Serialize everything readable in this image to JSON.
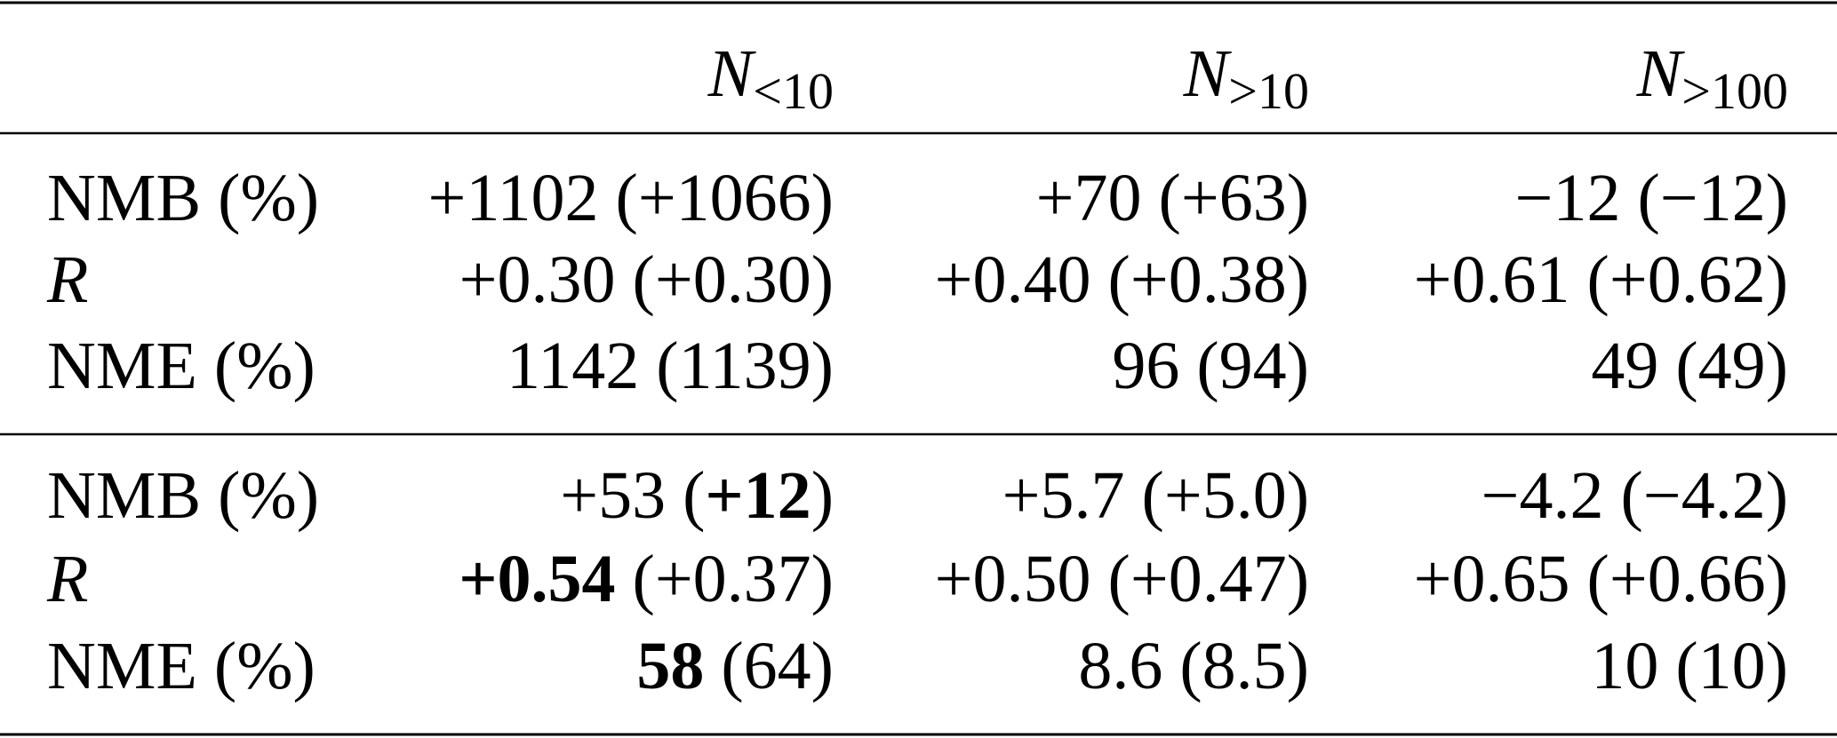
{
  "table": {
    "header": [
      {
        "symbol": "N",
        "subscript": "<10"
      },
      {
        "symbol": "N",
        "subscript": ">10"
      },
      {
        "symbol": "N",
        "subscript": ">100"
      }
    ],
    "groups": [
      [
        {
          "label": {
            "text": "NMB (%)"
          },
          "cells": [
            [
              {
                "text": "+1102 (+1066)"
              }
            ],
            [
              {
                "text": "+70 (+63)"
              }
            ],
            [
              {
                "text": "−12 (−12)"
              }
            ]
          ]
        },
        {
          "label": {
            "text": "R",
            "italic": true
          },
          "cells": [
            [
              {
                "text": "+0.30 (+0.30)"
              }
            ],
            [
              {
                "text": "+0.40 (+0.38)"
              }
            ],
            [
              {
                "text": "+0.61 (+0.62)"
              }
            ]
          ]
        },
        {
          "label": {
            "text": "NME (%)"
          },
          "cells": [
            [
              {
                "text": "1142 (1139)"
              }
            ],
            [
              {
                "text": "96 (94)"
              }
            ],
            [
              {
                "text": "49 (49)"
              }
            ]
          ]
        }
      ],
      [
        {
          "label": {
            "text": "NMB (%)"
          },
          "cells": [
            [
              {
                "text": "+53 ("
              },
              {
                "text": "+12",
                "bold": true
              },
              {
                "text": ")"
              }
            ],
            [
              {
                "text": "+5.7 (+5.0)"
              }
            ],
            [
              {
                "text": "−4.2 (−4.2)"
              }
            ]
          ]
        },
        {
          "label": {
            "text": "R",
            "italic": true
          },
          "cells": [
            [
              {
                "text": "+0.54",
                "bold": true
              },
              {
                "text": " (+0.37)"
              }
            ],
            [
              {
                "text": "+0.50 (+0.47)"
              }
            ],
            [
              {
                "text": "+0.65 (+0.66)"
              }
            ]
          ]
        },
        {
          "label": {
            "text": "NME (%)"
          },
          "cells": [
            [
              {
                "text": "58",
                "bold": true
              },
              {
                "text": " (64)"
              }
            ],
            [
              {
                "text": "8.6 (8.5)"
              }
            ],
            [
              {
                "text": "10 (10)"
              }
            ]
          ]
        }
      ]
    ]
  }
}
